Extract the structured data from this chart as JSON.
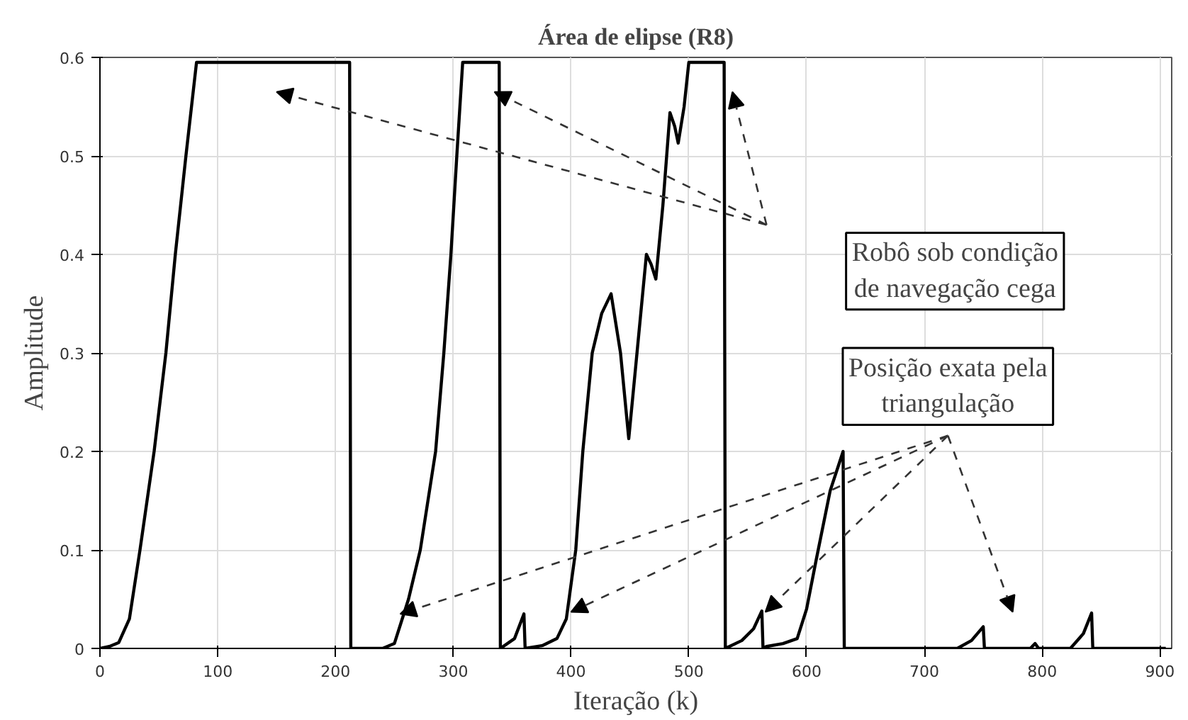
{
  "chart_data": {
    "type": "line",
    "title": "Área de elipse (R8)",
    "xlabel": "Iteração (k)",
    "ylabel": "Amplitude",
    "x": [
      0,
      8,
      16,
      25,
      34,
      46,
      56,
      64,
      73,
      82,
      212,
      213,
      240,
      250,
      262,
      272,
      285,
      292,
      298,
      303,
      308,
      339,
      340,
      352,
      360,
      361,
      376,
      388,
      396,
      404,
      410,
      418,
      426,
      434,
      442,
      449,
      456,
      464,
      468,
      472,
      478,
      484,
      488,
      491,
      496,
      500,
      530,
      531,
      545,
      555,
      562,
      563,
      566,
      580,
      592,
      600,
      608,
      620,
      631,
      632,
      728,
      740,
      750,
      751,
      790,
      794,
      797,
      824,
      835,
      842,
      843,
      905
    ],
    "series": [
      {
        "color": "#000000",
        "values": [
          0,
          0.002,
          0.006,
          0.03,
          0.1,
          0.2,
          0.3,
          0.4,
          0.5,
          0.595,
          0.595,
          0,
          0,
          0.005,
          0.05,
          0.1,
          0.2,
          0.3,
          0.4,
          0.5,
          0.595,
          0.595,
          0,
          0.01,
          0.035,
          0,
          0.003,
          0.01,
          0.03,
          0.1,
          0.2,
          0.3,
          0.34,
          0.36,
          0.3,
          0.213,
          0.3,
          0.4,
          0.39,
          0.375,
          0.45,
          0.544,
          0.53,
          0.513,
          0.55,
          0.595,
          0.595,
          0,
          0.008,
          0.02,
          0.038,
          0,
          0.002,
          0.005,
          0.01,
          0.04,
          0.089,
          0.16,
          0.2,
          0,
          0,
          0.008,
          0.022,
          0,
          0,
          0.005,
          0,
          0,
          0.015,
          0.036,
          0,
          0
        ]
      }
    ],
    "xlim": [
      0,
      910
    ],
    "ylim": [
      0,
      0.6
    ],
    "xticks": [
      0,
      100,
      200,
      300,
      400,
      500,
      600,
      700,
      800,
      900
    ],
    "yticks": [
      0,
      0.1,
      0.2,
      0.3,
      0.4,
      0.5,
      0.6
    ],
    "grid": true,
    "line_style": "solid",
    "marker": "none",
    "annotations": [
      "Robô sob condição\nde navegação cega",
      {
        "text": "Posição exata pela\ntriangulação",
        "x": 255,
        "y": 0.035
      }
    ]
  }
}
